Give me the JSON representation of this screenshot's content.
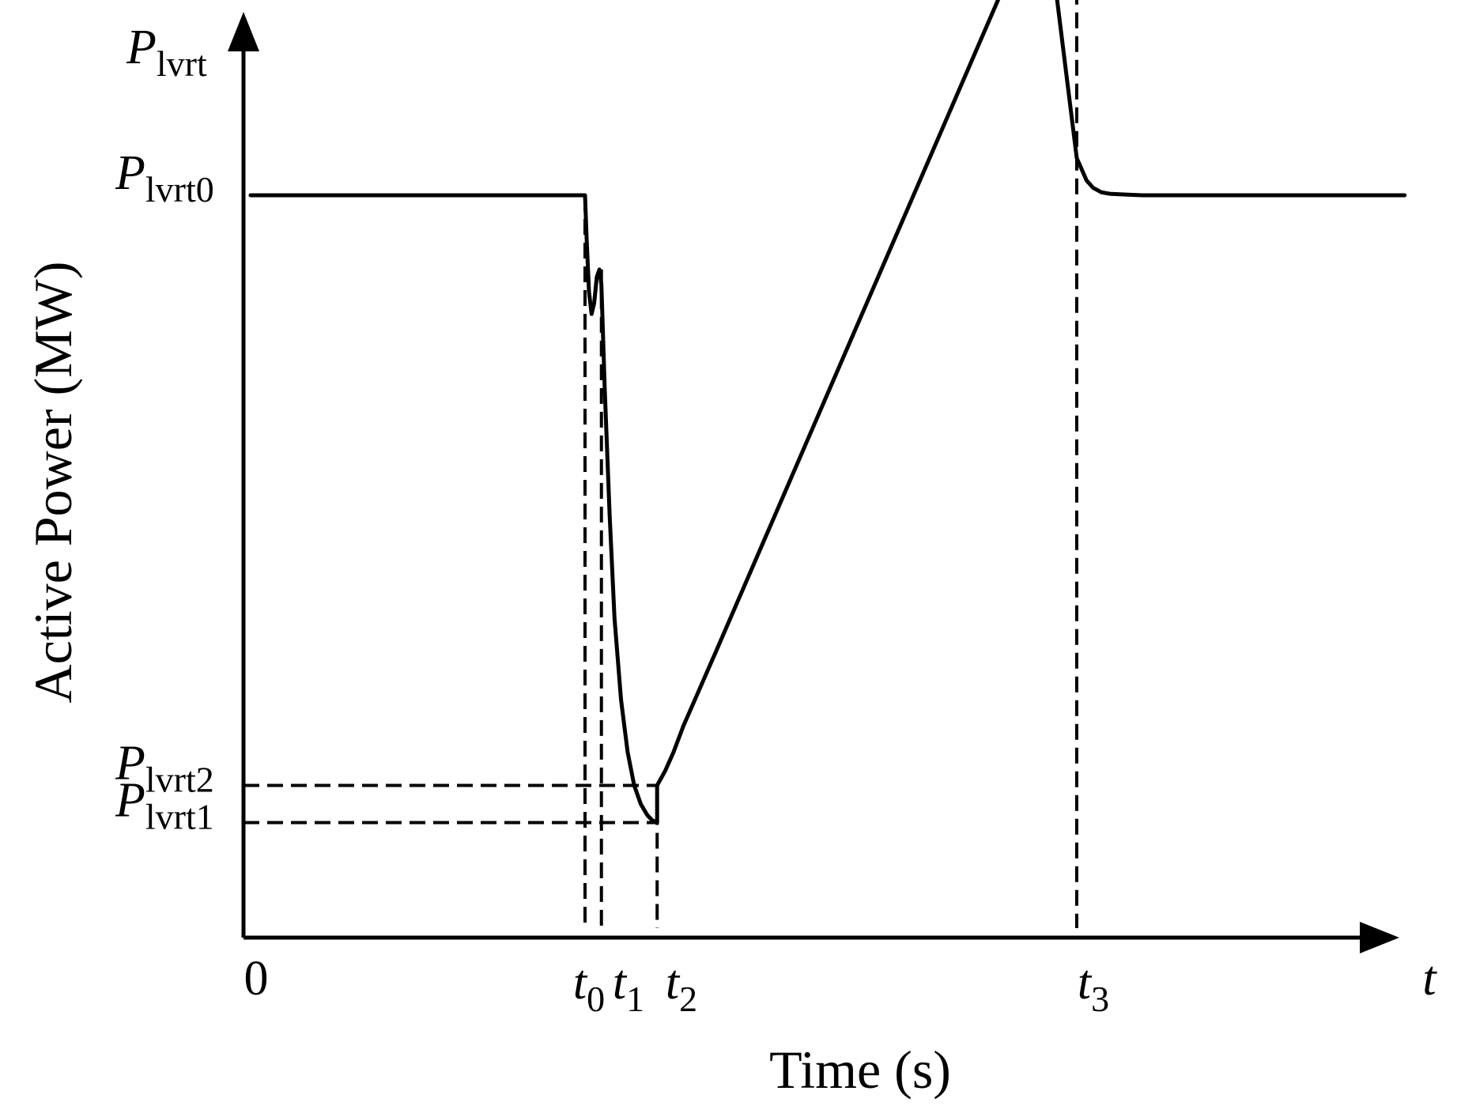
{
  "chart_data": {
    "type": "line",
    "xlabel": "Time (s)",
    "ylabel": "Active Power (MW)",
    "x_axis_symbol": {
      "main": "t",
      "sub": ""
    },
    "y_axis_symbol": {
      "main": "P",
      "sub": "lvrt"
    },
    "origin_label": "0",
    "x_ticks": [
      {
        "main": "t",
        "sub": "0",
        "value": 0.0
      },
      {
        "main": "t",
        "sub": "1",
        "value": 0.05
      },
      {
        "main": "t",
        "sub": "2",
        "value": 0.22
      },
      {
        "main": "t",
        "sub": "3",
        "value": 1.5
      }
    ],
    "y_ticks": [
      {
        "main": "P",
        "sub": "lvrt0",
        "value": 1.0
      },
      {
        "main": "P",
        "sub": "lvrt2",
        "value": 0.205
      },
      {
        "main": "P",
        "sub": "lvrt1",
        "value": 0.155
      }
    ],
    "xlim": [
      -1.03,
      2.5
    ],
    "ylim": [
      0,
      1.25
    ],
    "grid": false,
    "series": [
      {
        "x": [
          -1.02,
          0.0,
          0.005,
          0.012,
          0.02,
          0.028,
          0.036,
          0.044,
          0.05,
          0.06,
          0.075,
          0.09,
          0.11,
          0.13,
          0.15,
          0.17,
          0.19,
          0.205,
          0.22,
          0.22,
          0.245,
          0.27,
          0.3,
          0.4,
          0.6,
          0.8,
          1.0,
          1.2,
          1.4,
          1.5,
          1.515,
          1.53,
          1.55,
          1.575,
          1.6,
          1.65,
          1.7,
          1.8,
          1.9,
          2.0,
          2.25,
          2.5
        ],
        "y": [
          1.0,
          1.0,
          0.94,
          0.87,
          0.84,
          0.855,
          0.89,
          0.9,
          0.88,
          0.74,
          0.57,
          0.43,
          0.32,
          0.25,
          0.205,
          0.18,
          0.165,
          0.158,
          0.155,
          0.205,
          0.225,
          0.25,
          0.285,
          0.386,
          0.59,
          0.794,
          0.998,
          1.202,
          1.406,
          1.05,
          1.035,
          1.02,
          1.01,
          1.004,
          1.002,
          1.001,
          1.0,
          1.0,
          1.0,
          1.0,
          1.0,
          1.0
        ]
      }
    ]
  }
}
